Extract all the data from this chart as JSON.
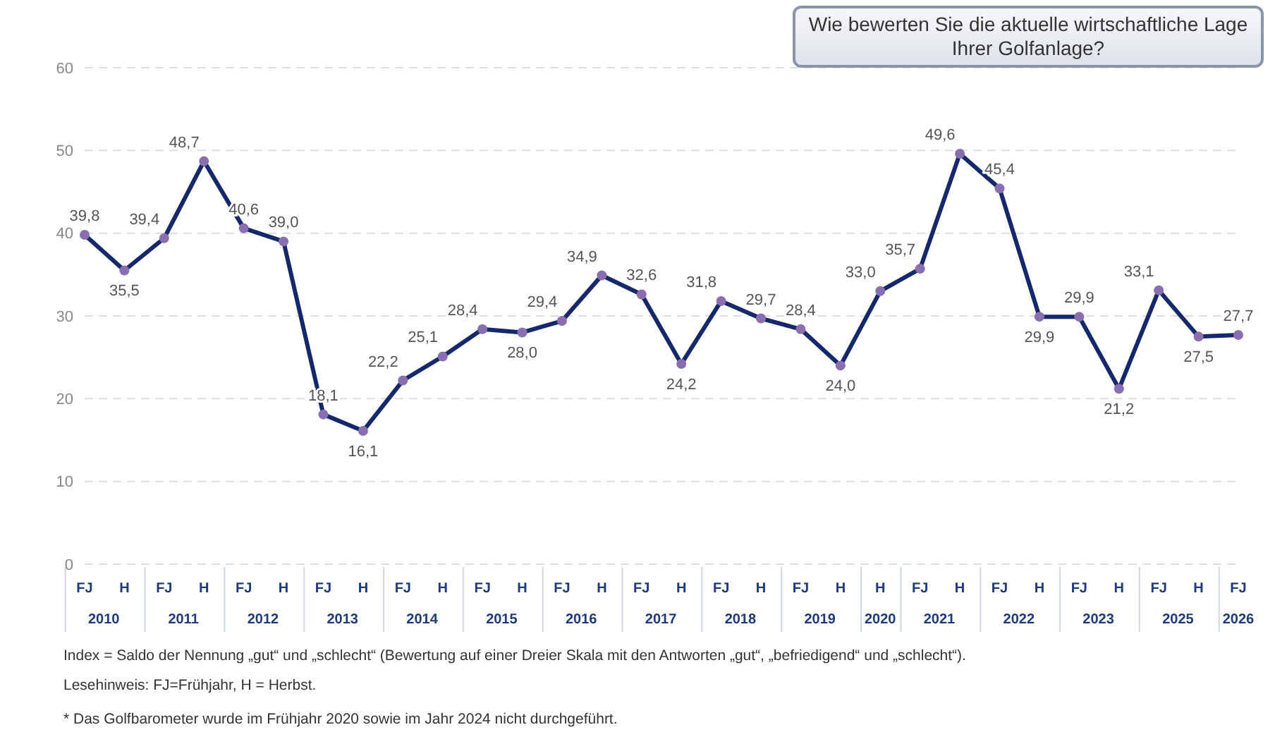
{
  "chart_data": {
    "type": "line",
    "title": "Wie bewerten Sie die aktuelle wirtschaftliche Lage Ihrer Golfanlage?",
    "categories": [
      "FJ",
      "H",
      "FJ",
      "H",
      "FJ",
      "H",
      "FJ",
      "H",
      "FJ",
      "H",
      "FJ",
      "H",
      "FJ",
      "H",
      "FJ",
      "H",
      "FJ",
      "H",
      "FJ",
      "H",
      "H",
      "FJ",
      "H",
      "FJ",
      "H",
      "FJ",
      "H",
      "FJ",
      "H",
      "FJ"
    ],
    "series": [
      {
        "color": "#14286a",
        "values": [
          39.8,
          35.5,
          39.4,
          48.7,
          40.6,
          39.0,
          18.1,
          16.1,
          22.2,
          25.1,
          28.4,
          28.0,
          29.4,
          34.9,
          32.6,
          24.2,
          31.8,
          29.7,
          28.4,
          24.0,
          33.0,
          35.7,
          49.6,
          45.4,
          29.9,
          29.9,
          21.2,
          33.1,
          27.5,
          27.7
        ],
        "value_labels": [
          "39,8",
          "35,5",
          "39,4",
          "48,7",
          "40,6",
          "39,0",
          "18,1",
          "16,1",
          "22,2",
          "25,1",
          "28,4",
          "28,0",
          "29,4",
          "34,9",
          "32,6",
          "24,2",
          "31,8",
          "29,7",
          "28,4",
          "24,0",
          "33,0",
          "35,7",
          "49,6",
          "45,4",
          "29,9",
          "29,9",
          "21,2",
          "33,1",
          "27,5",
          "27,7"
        ]
      }
    ],
    "ylim": [
      0,
      60
    ],
    "yticks": [
      0,
      10,
      20,
      30,
      40,
      50,
      60
    ],
    "grid": "y",
    "marker": "circle",
    "line_style": "solid",
    "annotations": [
      "2010",
      "2011",
      "2012",
      "2013",
      "2014",
      "2015",
      "2016",
      "2017",
      "2018",
      "2019",
      "2020",
      "2021",
      "2022",
      "2023",
      "2025",
      "2026",
      "Index = Saldo der Nennung „gut“ und „schlecht“ (Bewertung auf einer Dreier Skala mit den Antworten „gut“, „befriedigend“ und „schlecht“).",
      "Lesehinweis: FJ=Frühjahr, H = Herbst.",
      "* Das Golfbarometer wurde im Frühjahr 2020 sowie im Jahr 2024 nicht durchgeführt."
    ]
  }
}
